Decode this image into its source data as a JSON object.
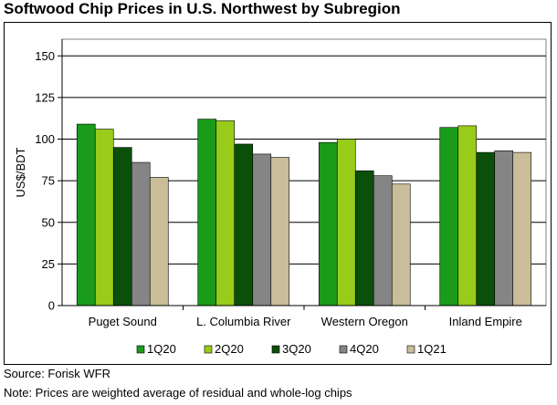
{
  "title": "Softwood Chip Prices in U.S. Northwest by Subregion",
  "source": "Source: Forisk WFR",
  "note": "Note: Prices are weighted average of residual and whole-log chips",
  "chart_data": {
    "type": "bar",
    "title": "Softwood Chip Prices in U.S. Northwest by Subregion",
    "xlabel": "",
    "ylabel": "US$/BDT",
    "ylim": [
      0,
      160
    ],
    "yticks": [
      0,
      25,
      50,
      75,
      100,
      125,
      150
    ],
    "grid": true,
    "legend_position": "bottom",
    "categories": [
      "Puget Sound",
      "L. Columbia River",
      "Western Oregon",
      "Inland Empire"
    ],
    "series": [
      {
        "name": "1Q20",
        "color": "#1a9b1a",
        "values": [
          109,
          112,
          98,
          107
        ]
      },
      {
        "name": "2Q20",
        "color": "#99cc1a",
        "values": [
          106,
          111,
          100,
          108
        ]
      },
      {
        "name": "3Q20",
        "color": "#0a500a",
        "values": [
          95,
          97,
          81,
          92
        ]
      },
      {
        "name": "4Q20",
        "color": "#858585",
        "values": [
          86,
          91,
          78,
          93
        ]
      },
      {
        "name": "1Q21",
        "color": "#c9bd9a",
        "values": [
          77,
          89,
          73,
          92
        ]
      }
    ]
  }
}
